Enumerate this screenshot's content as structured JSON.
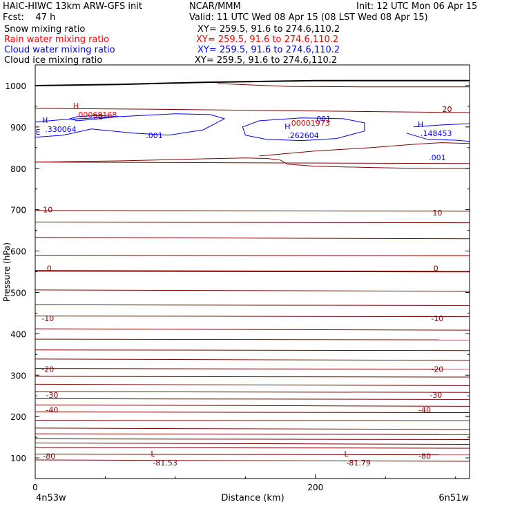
{
  "header": {
    "model": "HAIC-HIWC 13km ARW-GFS init",
    "org": "NCAR/MMM",
    "init": "Init: 12 UTC Mon 06 Apr 15",
    "fcst": "Fcst:    47 h",
    "valid": "Valid: 11 UTC Wed 08 Apr 15 (08 LST Wed 08 Apr 15)"
  },
  "legend": [
    {
      "label": "Snow mixing ratio",
      "xy": "XY= 259.5, 91.6 to 274.6,110.2",
      "color": "#000000"
    },
    {
      "label": "Rain water mixing ratio",
      "xy": "XY= 259.5, 91.6 to 274.6,110.2",
      "color": "#ff0000"
    },
    {
      "label": "Cloud water mixing ratio",
      "xy": "XY= 259.5, 91.6 to 274.6,110.2",
      "color": "#0000ff"
    },
    {
      "label": "Cloud ice mixing ratio",
      "xy": "XY= 259.5, 91.6 to 274.6,110.2",
      "color": "#000000"
    }
  ],
  "chart_data": {
    "type": "line",
    "title": "",
    "xlabel": "Distance (km)",
    "ylabel": "Pressure (hPa)",
    "xlim": [
      0,
      310
    ],
    "ylim": [
      1050,
      50
    ],
    "x_ticks": [
      0,
      200
    ],
    "y_ticks": [
      100,
      200,
      300,
      400,
      500,
      600,
      700,
      800,
      900,
      1000
    ],
    "x_endpoints": {
      "left": "4n53w",
      "right": "6n51w"
    },
    "isotherm_color": "#800000",
    "isotherms_hPa": [
      95,
      109,
      125,
      136,
      146,
      158,
      172,
      191,
      211,
      228,
      243,
      260,
      278,
      297,
      316,
      339,
      361,
      387,
      412,
      443,
      470,
      506,
      552,
      590,
      633,
      670,
      698,
      815
    ],
    "isotherm_labels": [
      {
        "text": "-80",
        "x": 10,
        "p": 104
      },
      {
        "text": "-80",
        "x": 278,
        "p": 104
      },
      {
        "text": "-40",
        "x": 12,
        "p": 216
      },
      {
        "text": "-40",
        "x": 278,
        "p": 216
      },
      {
        "text": "-30",
        "x": 12,
        "p": 252
      },
      {
        "text": "-30",
        "x": 286,
        "p": 252
      },
      {
        "text": "-20",
        "x": 9,
        "p": 315
      },
      {
        "text": "-20",
        "x": 287,
        "p": 315
      },
      {
        "text": "-10",
        "x": 9,
        "p": 437
      },
      {
        "text": "-10",
        "x": 287,
        "p": 437
      },
      {
        "text": "0",
        "x": 10,
        "p": 558
      },
      {
        "text": "0",
        "x": 286,
        "p": 558
      },
      {
        "text": "10",
        "x": 9,
        "p": 700
      },
      {
        "text": "10",
        "x": 287,
        "p": 693
      },
      {
        "text": "20",
        "x": 294,
        "p": 943
      }
    ],
    "extrema": [
      {
        "kind": "L",
        "value": "-81.53",
        "x": 84,
        "p": 92,
        "color": "#800000"
      },
      {
        "kind": "L",
        "value": "-81.79",
        "x": 222,
        "p": 92,
        "color": "#800000"
      },
      {
        "kind": "H",
        "value": ".330064",
        "x": 7,
        "p": 898,
        "color": "#0000ff"
      },
      {
        "kind": "H",
        "value": ".262604",
        "x": 180,
        "p": 883,
        "color": "#0000ff"
      },
      {
        "kind": "H",
        "value": ".148453",
        "x": 275,
        "p": 888,
        "color": "#0000ff"
      },
      {
        "kind": "H",
        "value": ".00068168",
        "x": 29,
        "p": 933,
        "color": "#ff0000"
      },
      {
        "kind": "",
        "value": ".00001973",
        "x": 181,
        "p": 913,
        "color": "#ff0000"
      }
    ],
    "cloud_water_labels": [
      {
        "text": ".001",
        "x": 85,
        "p": 880
      },
      {
        "text": ".001",
        "x": 205,
        "p": 920
      },
      {
        "text": ".001",
        "x": 287,
        "p": 826
      }
    ],
    "misc_labels": [
      {
        "text": "E",
        "x": 2,
        "p": 888
      },
      {
        "text": "20",
        "x": 45,
        "p": 925
      }
    ]
  }
}
